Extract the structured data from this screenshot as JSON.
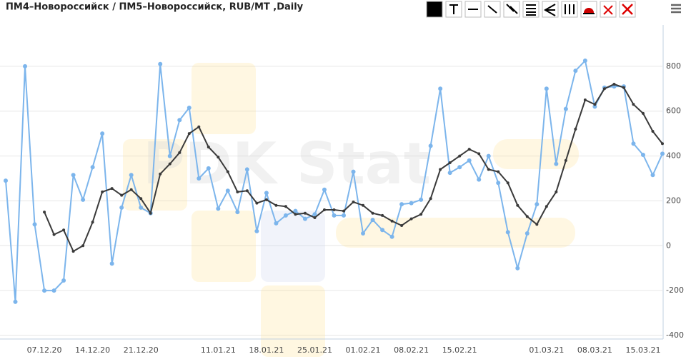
{
  "chart_data": {
    "type": "line",
    "title": "ПМ4–Новороссийск / ПМ5–Новороссийск, RUB/MT ,Daily",
    "watermark": "PDK Stat",
    "categories": [
      null,
      null,
      null,
      null,
      "07.12.20",
      null,
      null,
      null,
      null,
      "14.12.20",
      null,
      null,
      null,
      null,
      "21.12.20",
      null,
      null,
      null,
      null,
      null,
      null,
      null,
      "11.01.21",
      null,
      null,
      null,
      null,
      "18.01.21",
      null,
      null,
      null,
      null,
      "25.01.21",
      null,
      null,
      null,
      null,
      "01.02.21",
      null,
      null,
      null,
      null,
      "08.02.21",
      null,
      null,
      null,
      null,
      "15.02.21",
      null,
      null,
      null,
      null,
      null,
      null,
      null,
      null,
      "01.03.21",
      null,
      null,
      null,
      null,
      "08.03.21",
      null,
      null,
      null,
      null,
      "15.03.21",
      null,
      null
    ],
    "series": [
      {
        "color": "#7cb5ec",
        "values": [
          290,
          -250,
          800,
          95,
          -200,
          -200,
          -155,
          315,
          205,
          350,
          500,
          -80,
          170,
          315,
          170,
          145,
          810,
          400,
          560,
          615,
          300,
          345,
          165,
          245,
          150,
          340,
          65,
          235,
          100,
          135,
          155,
          120,
          140,
          250,
          135,
          135,
          330,
          55,
          115,
          70,
          40,
          185,
          190,
          205,
          445,
          700,
          325,
          350,
          380,
          295,
          400,
          280,
          60,
          -100,
          55,
          185,
          700,
          365,
          610,
          780,
          825,
          620,
          705,
          710,
          710,
          455,
          405,
          315,
          410
        ]
      },
      {
        "color": "#3a3a3a",
        "values": [
          null,
          null,
          null,
          null,
          150,
          50,
          70,
          -25,
          0,
          105,
          240,
          255,
          225,
          250,
          210,
          145,
          320,
          365,
          415,
          500,
          530,
          440,
          395,
          330,
          240,
          245,
          190,
          205,
          180,
          175,
          140,
          145,
          125,
          160,
          160,
          155,
          195,
          180,
          145,
          135,
          110,
          90,
          120,
          140,
          210,
          340,
          370,
          400,
          430,
          410,
          340,
          330,
          280,
          180,
          130,
          95,
          175,
          240,
          380,
          520,
          650,
          630,
          700,
          720,
          705,
          630,
          590,
          510,
          455
        ]
      }
    ],
    "ylim": [
      -400,
      1000
    ],
    "yticks": [
      800,
      600,
      400,
      200,
      0,
      -200,
      -400
    ],
    "grid": true
  }
}
